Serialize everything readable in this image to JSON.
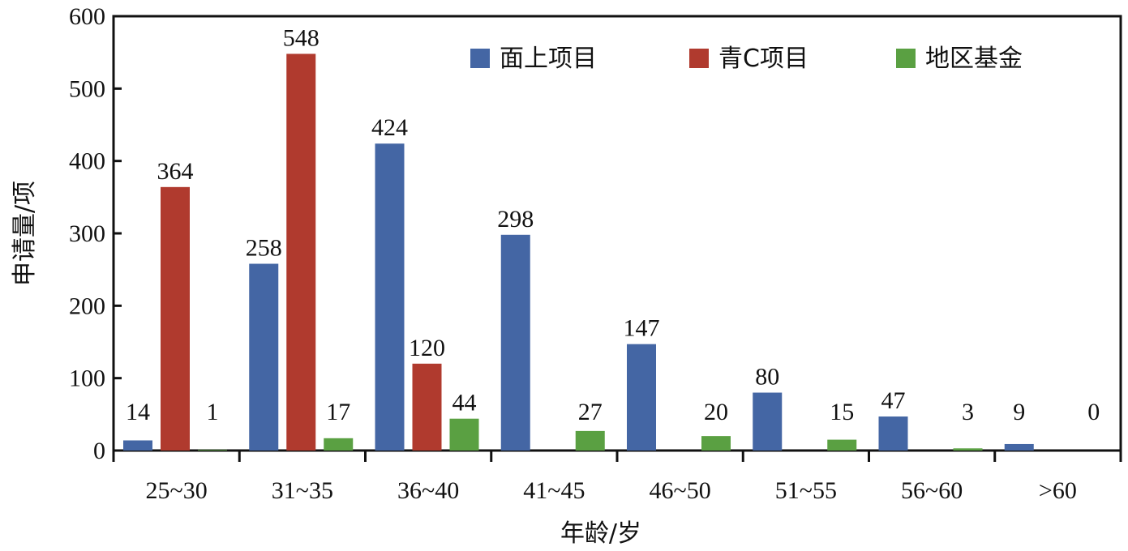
{
  "chart_data": {
    "type": "bar",
    "xlabel": "年龄/岁",
    "ylabel": "申请量/项",
    "ylim": [
      0,
      600
    ],
    "yticks": [
      0,
      100,
      200,
      300,
      400,
      500,
      600
    ],
    "categories": [
      "25~30",
      "31~35",
      "36~40",
      "41~45",
      "46~50",
      "51~55",
      "56~60",
      ">60"
    ],
    "series": [
      {
        "name": "面上项目",
        "color": "#4466a4",
        "values": [
          14,
          258,
          424,
          298,
          147,
          80,
          47,
          9
        ]
      },
      {
        "name": "青C项目",
        "color": "#b03a2e",
        "values": [
          364,
          548,
          120,
          null,
          null,
          null,
          null,
          null
        ]
      },
      {
        "name": "地区基金",
        "color": "#5aa042",
        "values": [
          1,
          17,
          44,
          27,
          20,
          15,
          3,
          0
        ]
      }
    ],
    "legend_position": "top-right",
    "grid": false
  }
}
